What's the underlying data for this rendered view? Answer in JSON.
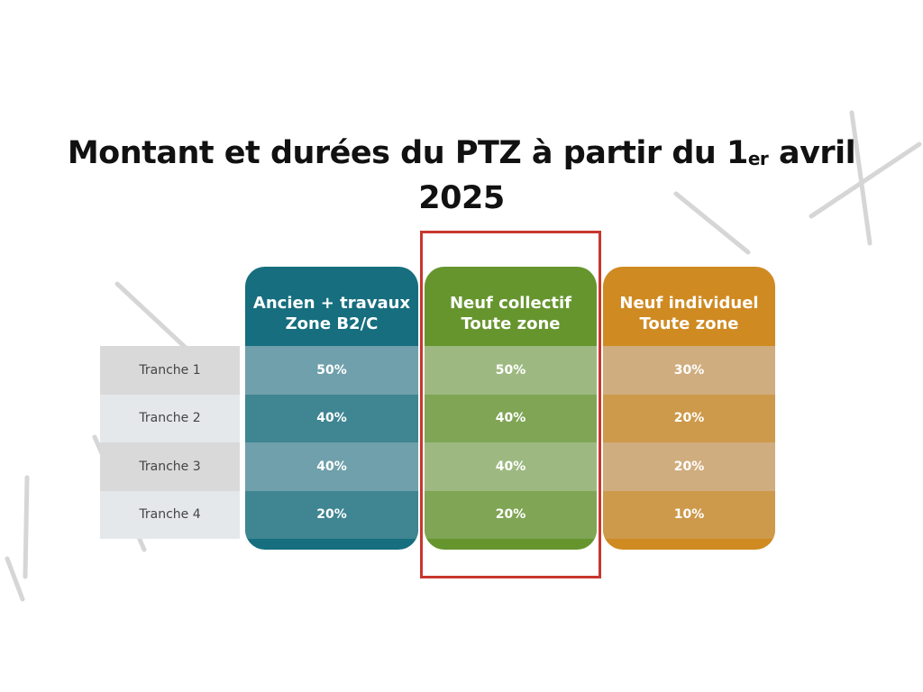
{
  "title": {
    "line1_before": "Montant et durées du PTZ à partir du 1",
    "sup": "er",
    "line1_after": " avril",
    "line2": "2025"
  },
  "row_labels": [
    "Tranche 1",
    "Tranche 2",
    "Tranche 3",
    "Tranche 4"
  ],
  "columns": [
    {
      "header_line1": "Ancien + travaux",
      "header_line2": "Zone B2/C",
      "values": [
        "50%",
        "40%",
        "40%",
        "20%"
      ],
      "colors": {
        "header": "#166e7e",
        "light": "#6fa0ab",
        "dark": "#3f8592"
      }
    },
    {
      "header_line1": "Neuf collectif",
      "header_line2": "Toute zone",
      "values": [
        "50%",
        "40%",
        "40%",
        "20%"
      ],
      "colors": {
        "header": "#66952e",
        "light": "#9db981",
        "dark": "#7fa555"
      },
      "highlighted": true
    },
    {
      "header_line1": "Neuf individuel",
      "header_line2": "Toute zone",
      "values": [
        "30%",
        "20%",
        "20%",
        "10%"
      ],
      "colors": {
        "header": "#cf8a22",
        "light": "#d0ad7f",
        "dark": "#cd9a4b"
      }
    }
  ],
  "highlight_color": "#c8372d"
}
